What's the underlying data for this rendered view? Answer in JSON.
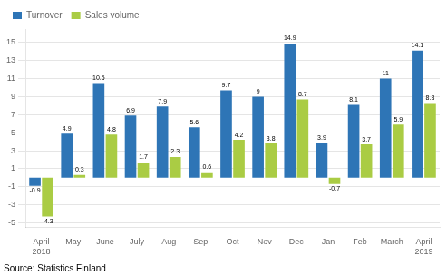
{
  "chart_data": {
    "type": "bar",
    "categories": [
      "April\n2018",
      "May",
      "June",
      "July",
      "Aug",
      "Sep",
      "Oct",
      "Nov",
      "Dec",
      "Jan",
      "Feb",
      "March",
      "April\n2019"
    ],
    "series": [
      {
        "name": "Turnover",
        "color": "#2E75B6",
        "values": [
          -0.9,
          4.9,
          10.5,
          6.9,
          7.9,
          5.6,
          9.7,
          9.0,
          14.9,
          3.9,
          8.1,
          11.0,
          14.1
        ]
      },
      {
        "name": "Sales volume",
        "color": "#AACC44",
        "values": [
          -4.3,
          0.3,
          4.8,
          1.7,
          2.3,
          0.6,
          4.2,
          3.8,
          8.7,
          -0.7,
          3.7,
          5.9,
          8.3
        ]
      }
    ],
    "ylim": [
      -5.5,
      16.5
    ],
    "yticks": [
      -5,
      -3,
      -1,
      1,
      3,
      5,
      7,
      9,
      11,
      13,
      15
    ],
    "grid": true,
    "legend": "upper left",
    "data_labels": true,
    "annotations": [
      "Source: Statistics Finland"
    ]
  }
}
